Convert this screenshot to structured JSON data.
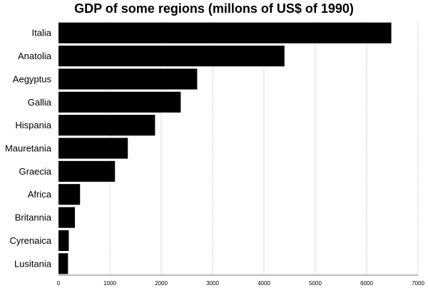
{
  "chart_data": {
    "type": "bar",
    "orientation": "horizontal",
    "title": "GDP of some regions (millons of US$ of 1990)",
    "xlabel": "",
    "ylabel": "",
    "categories": [
      "Italia",
      "Anatolia",
      "Aegyptus",
      "Gallia",
      "Hispania",
      "Mauretania",
      "Graecia",
      "Africa",
      "Britannia",
      "Cyrenaica",
      "Lusitania"
    ],
    "values": [
      6480,
      4400,
      2700,
      2380,
      1880,
      1350,
      1100,
      420,
      320,
      200,
      185
    ],
    "xlim": [
      0,
      7000
    ],
    "xticks": [
      0,
      1000,
      2000,
      3000,
      4000,
      5000,
      6000,
      7000
    ],
    "grid": true,
    "legend": "none",
    "bar_color": "#000000",
    "grid_color": "#b8b8b8"
  }
}
